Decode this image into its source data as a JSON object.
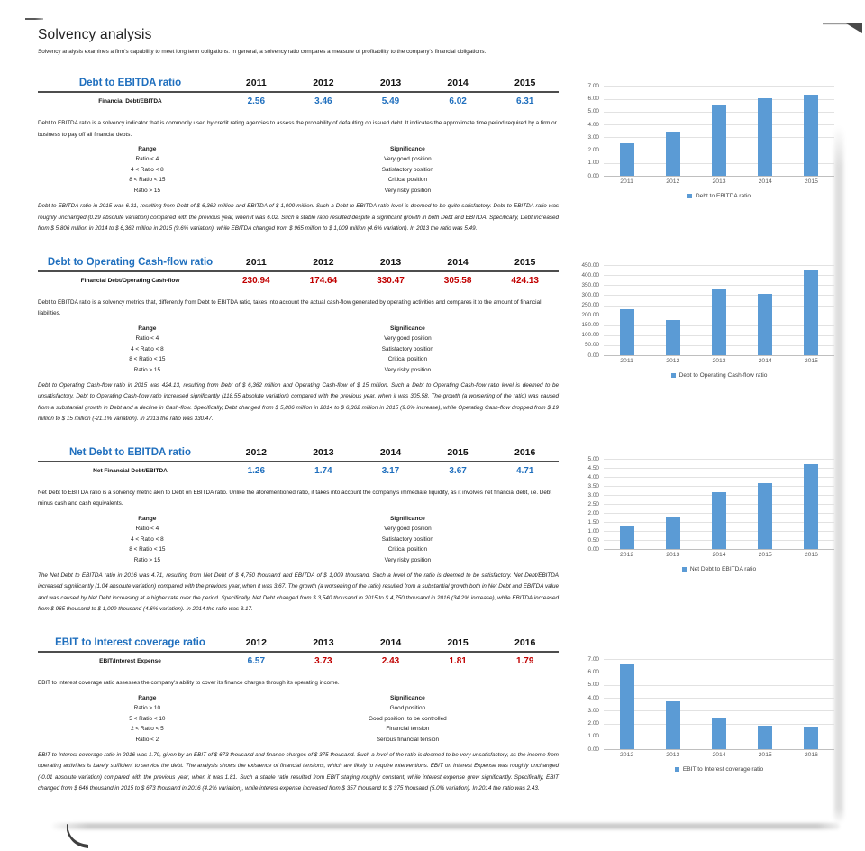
{
  "page": {
    "title": "Solvency analysis",
    "intro": "Solvency analysis examines a firm's capability to meet long term obligations. In general, a solvency ratio compares a measure of profitability to the company's financial obligations."
  },
  "colors": {
    "accent_blue": "#1F6FBE",
    "value_red": "#C00000",
    "bar_blue": "#5B9BD5"
  },
  "sections": [
    {
      "title": "Debt to EBITDA ratio",
      "years": [
        "2011",
        "2012",
        "2013",
        "2014",
        "2015"
      ],
      "metric_label": "Financial Debt/EBITDA",
      "values": [
        "2.56",
        "3.46",
        "5.49",
        "6.02",
        "6.31"
      ],
      "value_colors": [
        "blue",
        "blue",
        "blue",
        "blue",
        "blue"
      ],
      "description": "Debt to EBITDA ratio is a solvency indicator that is commonly used by credit rating agencies to assess the probability of defaulting on issued debt. It indicates the approximate time period required by a firm or business to pay off all financial debts.",
      "range_header": "Range",
      "significance_header": "Significance",
      "ranges": [
        [
          "Ratio < 4",
          "Very good position"
        ],
        [
          "4 < Ratio < 8",
          "Satisfactory position"
        ],
        [
          "8 < Ratio < 15",
          "Critical position"
        ],
        [
          "Ratio > 15",
          "Very risky position"
        ]
      ],
      "analysis": "Debt to EBITDA ratio in 2015 was 6.31, resulting from Debt of $ 6,362 million and EBITDA of $ 1,009 million. Such a Debt to EBITDA ratio level is deemed to be quite satisfactory. Debt to EBITDA ratio was roughly unchanged (0.29 absolute variation) compared with the previous year, when it was 6.02. Such a stable ratio resulted despite a significant growth in both Debt and EBITDA. Specifically, Debt increased from $ 5,806 million in 2014 to $ 6,362 million in 2015 (9.6% variation), while EBITDA changed from $ 965 million to $ 1,009 million (4.6% variation). In 2013 the ratio was 5.49."
    },
    {
      "title": "Debt to Operating Cash-flow ratio",
      "years": [
        "2011",
        "2012",
        "2013",
        "2014",
        "2015"
      ],
      "metric_label": "Financial Debt/Operating Cash-flow",
      "values": [
        "230.94",
        "174.64",
        "330.47",
        "305.58",
        "424.13"
      ],
      "value_colors": [
        "red",
        "red",
        "red",
        "red",
        "red"
      ],
      "description": "Debt to EBITDA ratio is a solvency metrics that, differently from Debt to EBITDA ratio, takes into account the actual cash-flow generated by operating activities and compares it to the amount of financial liabilities.",
      "range_header": "Range",
      "significance_header": "Significance",
      "ranges": [
        [
          "Ratio < 4",
          "Very good position"
        ],
        [
          "4 < Ratio < 8",
          "Satisfactory position"
        ],
        [
          "8 < Ratio < 15",
          "Critical position"
        ],
        [
          "Ratio > 15",
          "Very risky position"
        ]
      ],
      "analysis": "Debt to Operating Cash-flow ratio in 2015 was 424.13, resulting from Debt of $ 6,362 million and Operating Cash-flow of $ 15 million. Such a Debt to Operating Cash-flow ratio level is deemed to be unsatisfactory. Debt to Operating Cash-flow ratio increased significantly (118.55 absolute variation) compared with the previous year, when it was 305.58. The growth (a worsening of the ratio) was caused from a substantial growth in Debt and a decline in Cash-flow. Specifically, Debt changed from $ 5,806 million in 2014 to $ 6,362 million in 2015 (9.6% increase), while Operating Cash-flow dropped from $ 19 million to $ 15 million (-21.1% variation). In 2013 the ratio was 330.47."
    },
    {
      "title": "Net Debt to EBITDA ratio",
      "years": [
        "2012",
        "2013",
        "2014",
        "2015",
        "2016"
      ],
      "metric_label": "Net Financial Debt/EBITDA",
      "values": [
        "1.26",
        "1.74",
        "3.17",
        "3.67",
        "4.71"
      ],
      "value_colors": [
        "blue",
        "blue",
        "blue",
        "blue",
        "blue"
      ],
      "description": "Net Debt to EBITDA ratio is a solvency metric akin to Debt on EBITDA ratio. Unlike the aforementioned ratio, it takes into account the company's immediate liquidity, as it involves net financial debt, i.e. Debt minus cash and cash equivalents.",
      "range_header": "Range",
      "significance_header": "Significance",
      "ranges": [
        [
          "Ratio < 4",
          "Very good position"
        ],
        [
          "4 < Ratio < 8",
          "Satisfactory position"
        ],
        [
          "8 < Ratio < 15",
          "Critical position"
        ],
        [
          "Ratio > 15",
          "Very risky position"
        ]
      ],
      "analysis": "The Net Debt to EBITDA ratio in 2016 was 4.71, resulting from Net Debt of $ 4,750 thousand and EBITDA of $ 1,009 thousand. Such a level of the ratio is deemed to be satisfactory. Net Debt/EBITDA increased significantly (1.04 absolute variation) compared with the previous year, when it was 3.67. The growth (a worsening of the ratio) resulted from a substantial growth both in Net Debt and EBITDA value and was caused by Net Debt increasing at a higher rate over the period. Specifically, Net Debt changed from $ 3,540 thousand in 2015 to $ 4,750 thousand in 2016 (34.2% increase), while EBITDA increased from $ 965 thousand to $ 1,009 thousand (4.6% variation). In 2014 the ratio was 3.17."
    },
    {
      "title": "EBIT to Interest coverage ratio",
      "years": [
        "2012",
        "2013",
        "2014",
        "2015",
        "2016"
      ],
      "metric_label": "EBIT/Interest Expense",
      "values": [
        "6.57",
        "3.73",
        "2.43",
        "1.81",
        "1.79"
      ],
      "value_colors": [
        "blue",
        "red",
        "red",
        "red",
        "red"
      ],
      "description": "EBIT to Interest coverage ratio assesses the company's ability to cover its finance charges through its operating income.",
      "range_header": "Range",
      "significance_header": "Significance",
      "ranges": [
        [
          "Ratio > 10",
          "Good position"
        ],
        [
          "5 < Ratio < 10",
          "Good position, to be controlled"
        ],
        [
          "2 < Ratio < 5",
          "Financial tension"
        ],
        [
          "Ratio < 2",
          "Serious financial tension"
        ]
      ],
      "analysis": "EBIT to Interest coverage ratio in 2016 was 1.79, given by an EBIT of $ 673 thousand and finance charges of $ 375 thousand. Such a level of the ratio is deemed to be very unsatisfactory, as the income from operating activities is barely sufficient to service the debt. The analysis shows the existence of financial tensions, which are likely to require interventions. EBIT on Interest Expense was roughly unchanged (-0.01 absolute variation) compared with the previous year, when it was 1.81. Such a stable ratio resulted from EBIT staying roughly constant, while interest expense grew significantly. Specifically, EBIT changed from $ 646 thousand in 2015 to $ 673 thousand in 2016 (4.2% variation), while interest expense increased from $ 357 thousand to $ 375 thousand (5.0% variation). In 2014 the ratio was 2.43."
    }
  ],
  "chart_data": [
    {
      "type": "bar",
      "categories": [
        "2011",
        "2012",
        "2013",
        "2014",
        "2015"
      ],
      "values": [
        2.56,
        3.46,
        5.49,
        6.02,
        6.31
      ],
      "legend": "Debt to EBITDA ratio",
      "title": "",
      "xlabel": "",
      "ylabel": "",
      "ylim": [
        0,
        7
      ],
      "ytick": 1,
      "grid": true,
      "legend_position": "bottom"
    },
    {
      "type": "bar",
      "categories": [
        "2011",
        "2012",
        "2013",
        "2014",
        "2015"
      ],
      "values": [
        230.94,
        174.64,
        330.47,
        305.58,
        424.13
      ],
      "legend": "Debt to Operating Cash-flow ratio",
      "title": "",
      "xlabel": "",
      "ylabel": "",
      "ylim": [
        0,
        450
      ],
      "ytick": 50,
      "grid": true,
      "legend_position": "bottom"
    },
    {
      "type": "bar",
      "categories": [
        "2012",
        "2013",
        "2014",
        "2015",
        "2016"
      ],
      "values": [
        1.26,
        1.74,
        3.17,
        3.67,
        4.71
      ],
      "legend": "Net Debt to EBITDA ratio",
      "title": "",
      "xlabel": "",
      "ylabel": "",
      "ylim": [
        0,
        5
      ],
      "ytick": 0.5,
      "grid": true,
      "legend_position": "bottom"
    },
    {
      "type": "bar",
      "categories": [
        "2012",
        "2013",
        "2014",
        "2015",
        "2016"
      ],
      "values": [
        6.57,
        3.73,
        2.43,
        1.81,
        1.79
      ],
      "legend": "EBIT to Interest coverage ratio",
      "title": "",
      "xlabel": "",
      "ylabel": "",
      "ylim": [
        0,
        7
      ],
      "ytick": 1,
      "grid": true,
      "legend_position": "bottom"
    }
  ]
}
